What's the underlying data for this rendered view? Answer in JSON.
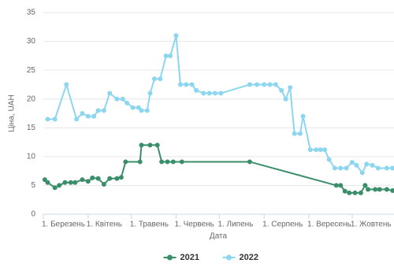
{
  "chart_data": {
    "type": "line",
    "x_label": "Дата",
    "y_label": "Ціна, UAH",
    "xlim": [
      0,
      243
    ],
    "ylim": [
      0,
      35
    ],
    "xticks": [
      {
        "value": 0,
        "label": "1. Березень"
      },
      {
        "value": 31,
        "label": "1. Квітень"
      },
      {
        "value": 61,
        "label": "1. Травень"
      },
      {
        "value": 92,
        "label": "1. Червень"
      },
      {
        "value": 122,
        "label": "1. Липень"
      },
      {
        "value": 153,
        "label": "1. Серпень"
      },
      {
        "value": 184,
        "label": "1. Вересень"
      },
      {
        "value": 214,
        "label": "1. Жовтень"
      }
    ],
    "yticks": [
      0,
      5,
      10,
      15,
      20,
      25,
      30,
      35
    ],
    "grid": true,
    "legend": "bottom",
    "series": [
      {
        "name": "2021",
        "color": "#3a8f6a",
        "x": [
          1,
          3,
          8,
          11,
          15,
          19,
          22,
          27,
          31,
          34,
          38,
          42,
          46,
          51,
          54,
          57,
          67,
          68,
          74,
          79,
          82,
          86,
          90,
          96,
          143,
          203,
          206,
          209,
          212,
          216,
          220,
          223,
          225,
          230,
          233,
          238,
          242
        ],
        "values": [
          6.0,
          5.5,
          4.6,
          5.0,
          5.5,
          5.5,
          5.5,
          6.0,
          5.7,
          6.3,
          6.2,
          5.2,
          6.2,
          6.2,
          6.4,
          9.1,
          9.1,
          12,
          12,
          12,
          9.1,
          9.1,
          9.1,
          9.1,
          9.1,
          5.0,
          5.0,
          4.0,
          3.7,
          3.7,
          3.7,
          5.0,
          4.3,
          4.3,
          4.3,
          4.3,
          4.1
        ]
      },
      {
        "name": "2022",
        "color": "#8dd6f0",
        "x": [
          3,
          8,
          16,
          23,
          27,
          31,
          35,
          38,
          42,
          46,
          51,
          55,
          58,
          62,
          66,
          68,
          72,
          74,
          77,
          81,
          85,
          88,
          92,
          95,
          99,
          103,
          106,
          111,
          115,
          119,
          123,
          143,
          148,
          153,
          157,
          161,
          165,
          168,
          171,
          174,
          178,
          180,
          185,
          189,
          192,
          195,
          198,
          202,
          206,
          210,
          214,
          217,
          221,
          224,
          228,
          232,
          238,
          242
        ],
        "values": [
          16.5,
          16.5,
          22.5,
          16.5,
          17.5,
          17.0,
          17.0,
          18.0,
          18.0,
          21.0,
          20.0,
          20.0,
          19.3,
          18.5,
          18.5,
          18.0,
          18.0,
          21.0,
          23.5,
          23.5,
          27.5,
          27.5,
          31.0,
          22.5,
          22.5,
          22.5,
          21.5,
          21.0,
          21.0,
          21.0,
          21.0,
          22.5,
          22.5,
          22.5,
          22.5,
          22.5,
          21.5,
          20.0,
          22.0,
          14.0,
          14.0,
          17.0,
          11.2,
          11.2,
          11.2,
          11.2,
          9.5,
          8.0,
          8.0,
          8.0,
          9.0,
          8.5,
          7.2,
          8.7,
          8.5,
          8.0,
          8.0,
          8.0
        ]
      }
    ]
  }
}
